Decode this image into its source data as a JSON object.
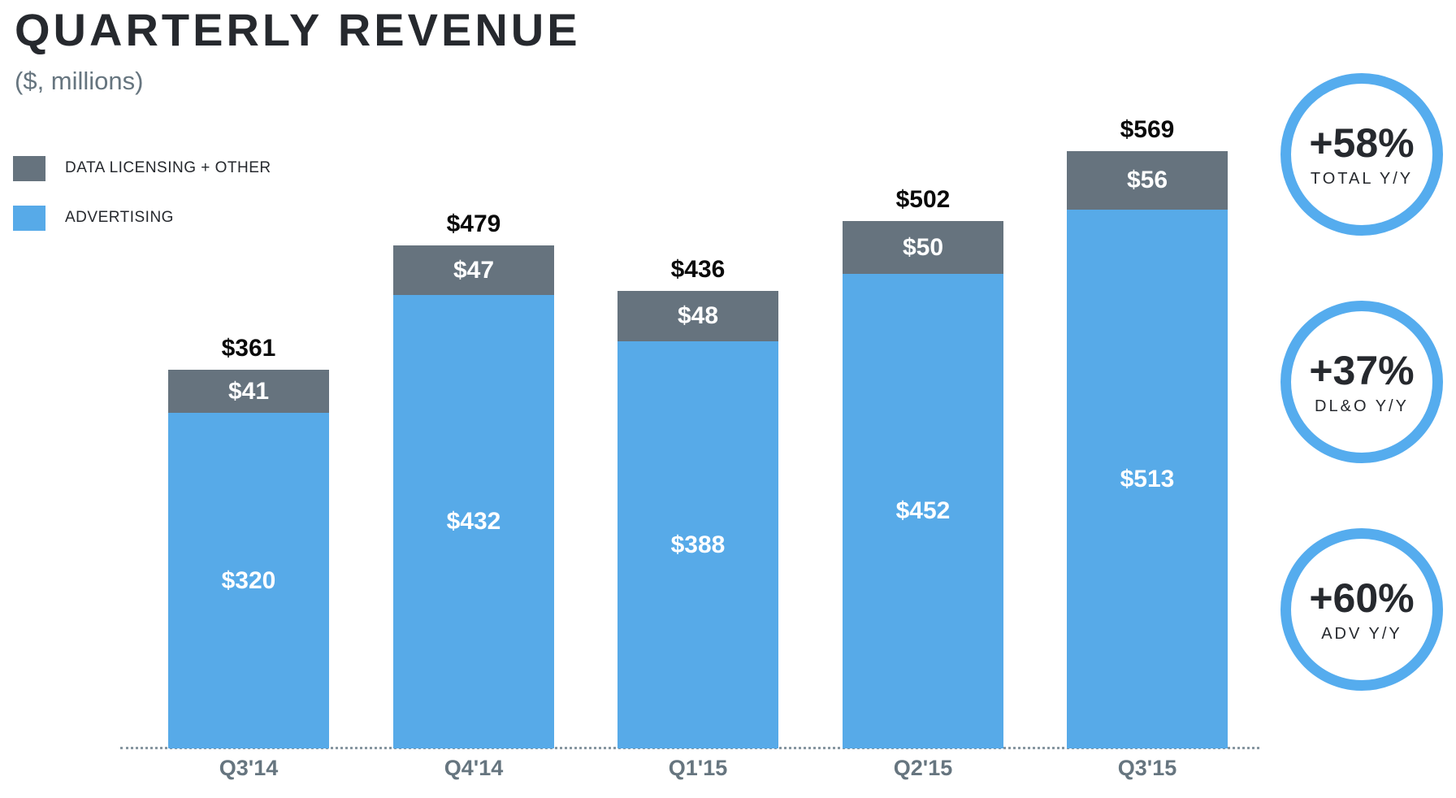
{
  "title": "QUARTERLY REVENUE",
  "subtitle": "($, millions)",
  "colors": {
    "advertising_blue": "#57aae8",
    "data_licensing_gray": "#66737e",
    "badge_ring_blue": "#55acee",
    "axis_gray": "#66757f",
    "title_charcoal": "#26292e"
  },
  "legend": [
    {
      "label": "DATA LICENSING + OTHER",
      "color": "#66737e"
    },
    {
      "label": "ADVERTISING",
      "color": "#57aae8"
    }
  ],
  "chart_data": {
    "type": "bar",
    "stacked": true,
    "title": "QUARTERLY REVENUE",
    "units": "$, millions",
    "categories": [
      "Q3'14",
      "Q4'14",
      "Q1'15",
      "Q2'15",
      "Q3'15"
    ],
    "series": [
      {
        "name": "ADVERTISING",
        "color": "#57aae8",
        "values": [
          320,
          432,
          388,
          452,
          513
        ]
      },
      {
        "name": "DATA LICENSING + OTHER",
        "color": "#66737e",
        "values": [
          41,
          47,
          48,
          50,
          56
        ]
      }
    ],
    "totals": [
      361,
      479,
      436,
      502,
      569
    ],
    "value_prefix": "$",
    "ylim": [
      0,
      600
    ],
    "grid": false,
    "axis_line": "dotted",
    "legend_position": "top-left"
  },
  "badges": [
    {
      "value": "+58%",
      "label": "TOTAL Y/Y"
    },
    {
      "value": "+37%",
      "label": "DL&O Y/Y"
    },
    {
      "value": "+60%",
      "label": "ADV Y/Y"
    }
  ]
}
